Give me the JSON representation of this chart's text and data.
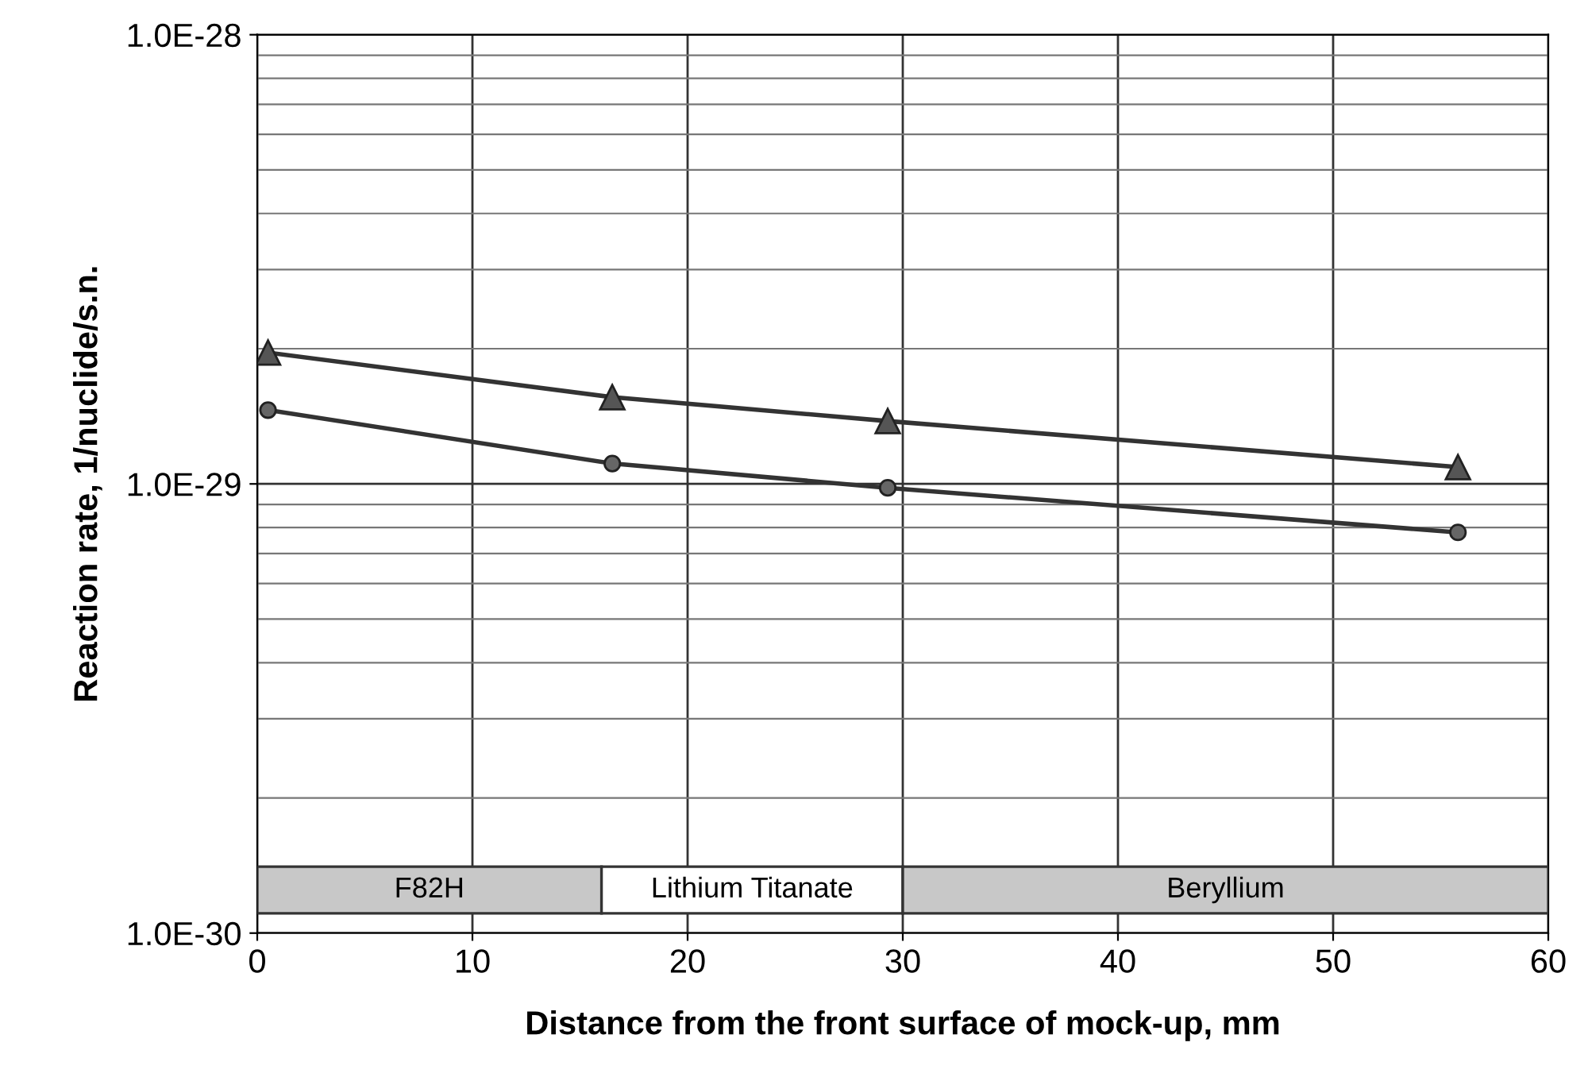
{
  "chart_data": {
    "type": "line",
    "xlabel": "Distance from the front surface of mock-up, mm",
    "ylabel": "Reaction rate, 1/nuclide/s.n.",
    "log": "y",
    "grid": true,
    "line_style": "solid",
    "xlim": [
      0,
      60
    ],
    "xticks": [
      0,
      10,
      20,
      30,
      40,
      50,
      60
    ],
    "ylim": [
      1e-30,
      1e-28
    ],
    "yticks": [
      {
        "value": 1e-30,
        "label": "1.0E-30"
      },
      {
        "value": 1e-29,
        "label": "1.0E-29"
      },
      {
        "value": 1e-28,
        "label": "1.0E-28"
      }
    ],
    "series": [
      {
        "color": "#555555",
        "marker": "triangle",
        "x": [
          0.5,
          16.5,
          29.3,
          55.8
        ],
        "values": [
          1.96e-29,
          1.56e-29,
          1.38e-29,
          1.09e-29
        ]
      },
      {
        "color": "#666666",
        "marker": "circle",
        "x": [
          0.5,
          16.5,
          29.3,
          55.8
        ],
        "values": [
          1.46e-29,
          1.11e-29,
          9.8e-30,
          7.8e-30
        ]
      }
    ],
    "bands": [
      {
        "axis": "x",
        "from": 0,
        "to": 16,
        "label": "F82H",
        "color": "#c8c8c8"
      },
      {
        "axis": "x",
        "from": 16,
        "to": 30,
        "label": "Lithium Titanate",
        "color": "#ffffff"
      },
      {
        "axis": "x",
        "from": 30,
        "to": 60,
        "label": "Beryllium",
        "color": "#c8c8c8"
      }
    ]
  }
}
